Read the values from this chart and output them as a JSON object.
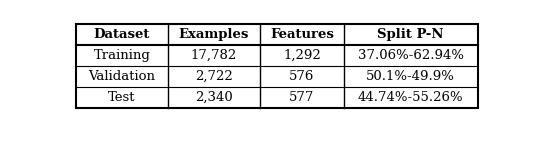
{
  "col_labels": [
    "Dataset",
    "Examples",
    "Features",
    "Split P-N"
  ],
  "rows": [
    [
      "Training",
      "17,782",
      "1,292",
      "37.06%-62.94%"
    ],
    [
      "Validation",
      "2,722",
      "576",
      "50.1%-49.9%"
    ],
    [
      "Test",
      "2,340",
      "577",
      "44.74%-55.26%"
    ]
  ],
  "background_color": "#ffffff",
  "fig_width": 5.4,
  "fig_height": 1.5,
  "dpi": 100
}
